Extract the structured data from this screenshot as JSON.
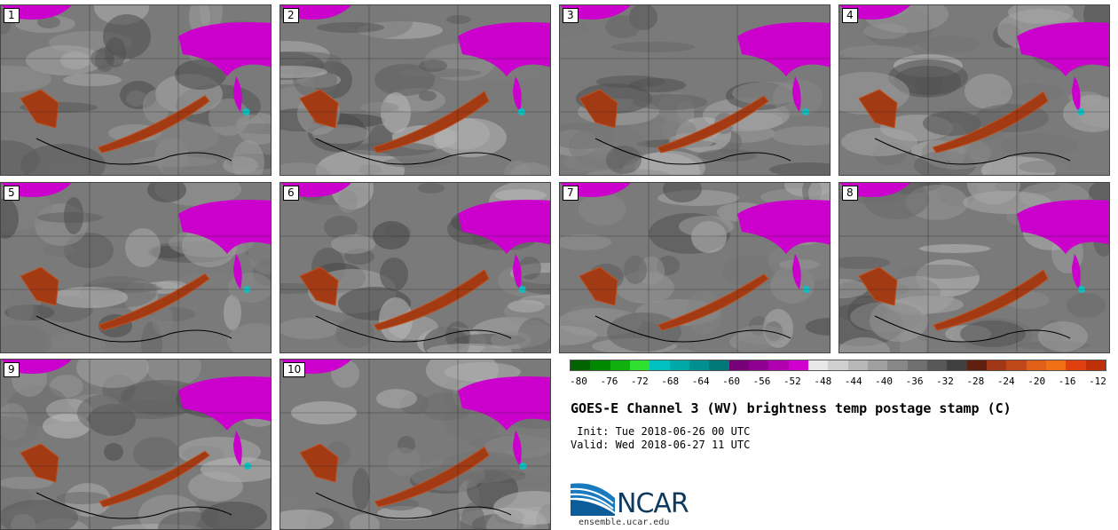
{
  "panels": [
    {
      "label": "1"
    },
    {
      "label": "2"
    },
    {
      "label": "3"
    },
    {
      "label": "4"
    },
    {
      "label": "5"
    },
    {
      "label": "6"
    },
    {
      "label": "7"
    },
    {
      "label": "8"
    },
    {
      "label": "9"
    },
    {
      "label": "10"
    }
  ],
  "colorbar": {
    "ticks": [
      "-80",
      "-76",
      "-72",
      "-68",
      "-64",
      "-60",
      "-56",
      "-52",
      "-48",
      "-44",
      "-40",
      "-36",
      "-32",
      "-28",
      "-24",
      "-20",
      "-16",
      "-12"
    ],
    "colors": [
      "#006400",
      "#008800",
      "#10b010",
      "#30e030",
      "#00c0c0",
      "#00a8a8",
      "#009090",
      "#007878",
      "#780078",
      "#900090",
      "#b000b0",
      "#d000d0",
      "#e8e8e8",
      "#d0d0d0",
      "#b8b8b8",
      "#a0a0a0",
      "#888888",
      "#707070",
      "#585858",
      "#404040",
      "#602010",
      "#a03818",
      "#c04818",
      "#e06018",
      "#f07018",
      "#e04010",
      "#c03008"
    ]
  },
  "title": "GOES-E Channel 3 (WV) brightness temp postage stamp (C)",
  "init": " Init: Tue 2018-06-26 00 UTC",
  "valid": "Valid: Wed 2018-06-27 11 UTC",
  "logo": {
    "text": "NCAR",
    "url": "ensemble.ucar.edu"
  }
}
